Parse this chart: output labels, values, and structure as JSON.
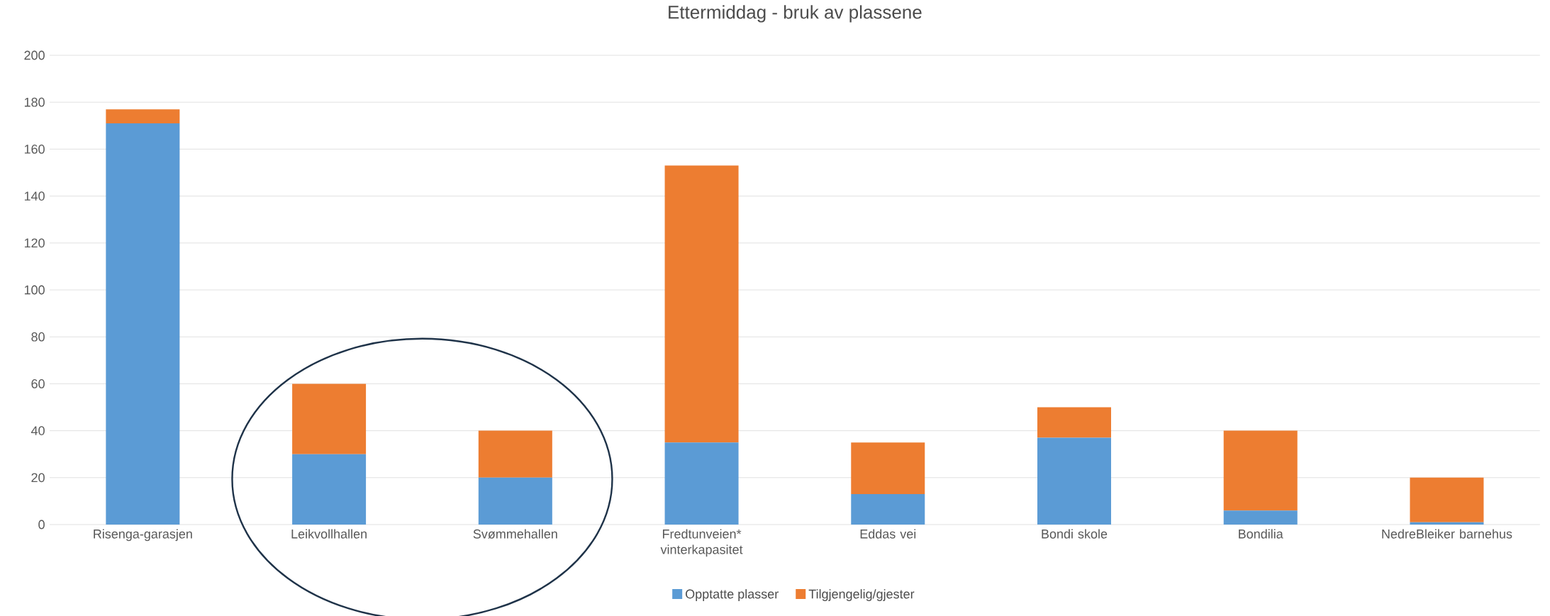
{
  "chart_data": {
    "type": "bar",
    "title": "Ettermiddag - bruk av plassene",
    "stacked": true,
    "categories": [
      "Risenga-garasjen",
      "Leikvollhallen",
      "Svømmehallen",
      "Fredtunveien* vinterkapasitet",
      "Eddas vei",
      "Bondi skole",
      "Bondilia",
      "NedreBleiker barnehus"
    ],
    "series": [
      {
        "name": "Opptatte plasser",
        "color": "#5b9bd5",
        "values": [
          171,
          30,
          20,
          35,
          13,
          37,
          6,
          1
        ]
      },
      {
        "name": "Tilgjengelig/gjester",
        "color": "#ed7d31",
        "values": [
          6,
          30,
          20,
          118,
          22,
          13,
          34,
          19
        ]
      }
    ],
    "ylim": [
      0,
      200
    ],
    "yticks": [
      0,
      20,
      40,
      60,
      80,
      100,
      120,
      140,
      160,
      180,
      200
    ],
    "grid": "y",
    "legend": "bottom"
  }
}
